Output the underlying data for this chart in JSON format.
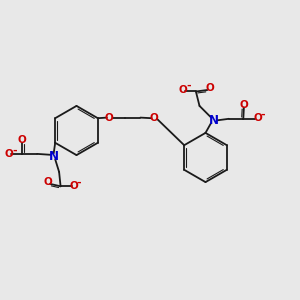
{
  "bg_color": "#e8e8e8",
  "bond_color": "#1a1a1a",
  "N_color": "#0000cc",
  "O_color": "#cc0000",
  "lw": 1.3,
  "lw_inner": 0.8,
  "figsize": [
    3.0,
    3.0
  ],
  "dpi": 100,
  "xlim": [
    0,
    10
  ],
  "ylim": [
    0,
    10
  ]
}
